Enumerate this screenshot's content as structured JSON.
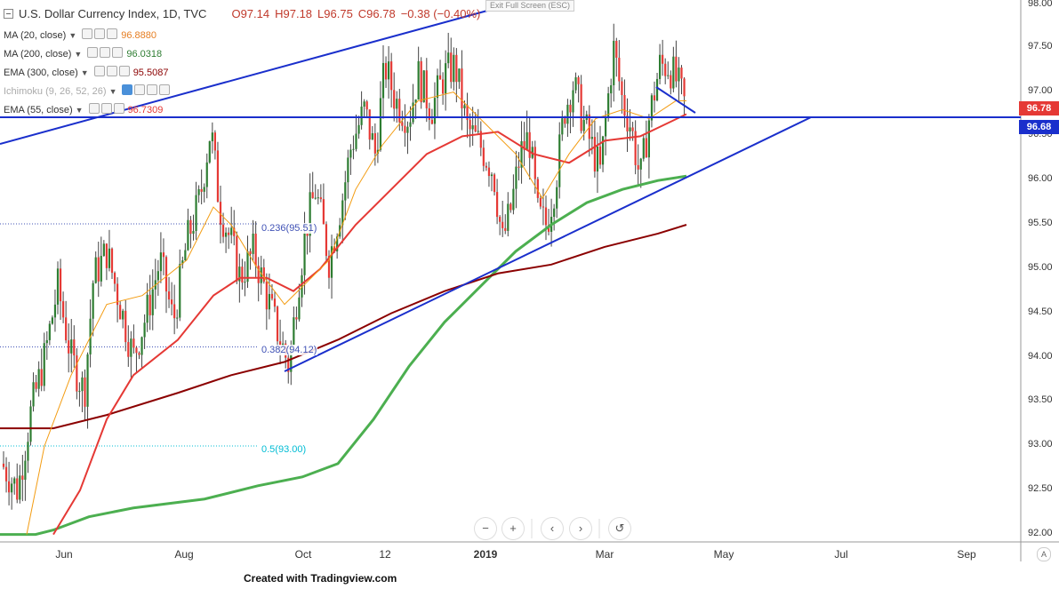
{
  "header": {
    "symbol_title": "U.S. Dollar Currency Index, 1D, TVC",
    "open": "O97.14",
    "high": "H97.18",
    "low": "L96.75",
    "close": "C96.78",
    "change": "−0.38 (−0.40%)",
    "exit_fullscreen": "Exit Full Screen (ESC)"
  },
  "indicators": [
    {
      "name": "MA (20, close)",
      "value": "96.8880",
      "color": "#e67e22"
    },
    {
      "name": "MA (200, close)",
      "value": "96.0318",
      "color": "#2e7d32"
    },
    {
      "name": "EMA (300, close)",
      "value": "95.5087",
      "color": "#8b0000"
    },
    {
      "name": "Ichimoku (9, 26, 52, 26)",
      "value": "",
      "color": "#999999"
    },
    {
      "name": "EMA (55, close)",
      "value": "96.7309",
      "color": "#e53935"
    }
  ],
  "price_axis": {
    "ticks": [
      "98.00",
      "97.50",
      "97.00",
      "96.50",
      "96.00",
      "95.50",
      "95.00",
      "94.50",
      "94.00",
      "93.50",
      "93.00",
      "92.50",
      "92.00"
    ],
    "last_price": "96.78",
    "horizontal_level": "96.68"
  },
  "time_axis": {
    "ticks": [
      {
        "label": "Jun",
        "bold": false
      },
      {
        "label": "Aug",
        "bold": false
      },
      {
        "label": "Oct",
        "bold": false
      },
      {
        "label": "12",
        "bold": false
      },
      {
        "label": "2019",
        "bold": true
      },
      {
        "label": "Mar",
        "bold": false
      },
      {
        "label": "May",
        "bold": false
      },
      {
        "label": "Jul",
        "bold": false
      },
      {
        "label": "Sep",
        "bold": false
      }
    ],
    "auto_scale": "A"
  },
  "fibonacci": [
    {
      "label": "0.236(95.51)",
      "color": "#3f51b5"
    },
    {
      "label": "0.382(94.12)",
      "color": "#3f51b5"
    },
    {
      "label": "0.5(93.00)",
      "color": "#00bcd4"
    }
  ],
  "navigation": {
    "zoom_out": "−",
    "zoom_in": "+",
    "scroll_left": "‹",
    "scroll_right": "›",
    "reset": "↺"
  },
  "footer": {
    "credit": "Created with Tradingview.com"
  },
  "colors": {
    "up": "#26a69a",
    "up_candle": "#2e7d32",
    "down_candle": "#e53935",
    "trendline": "#1a2fcc",
    "ma20": "#f39c12",
    "ma200": "#4caf50",
    "ema300": "#8b0000",
    "ema55": "#e53935",
    "price_badge": "#e53935",
    "level_badge": "#1a2fcc"
  }
}
